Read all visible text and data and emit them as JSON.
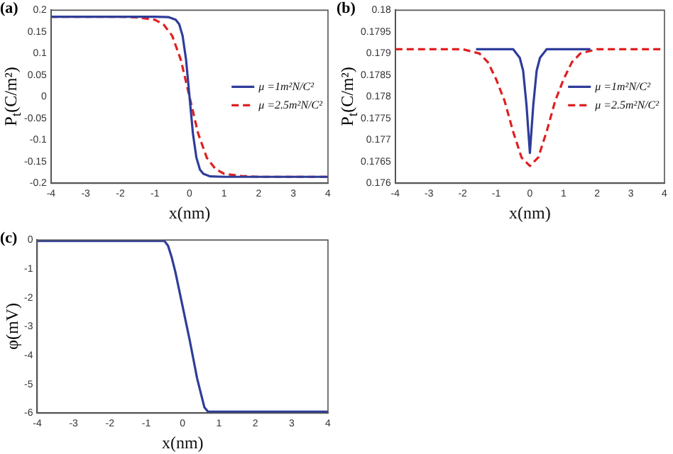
{
  "chart_data": [
    {
      "type": "line",
      "title": "(a)",
      "xlabel": "x(nm)",
      "ylabel": "P$_{t}$(C/m²)",
      "xlim": [
        -4,
        4
      ],
      "xticks": [
        -4,
        -3,
        -2,
        -1,
        0,
        1,
        2,
        3,
        4
      ],
      "ylim": [
        -0.2,
        0.2
      ],
      "yticks": [
        -0.2,
        -0.15,
        -0.1,
        -0.05,
        0,
        0.05,
        0.1,
        0.15,
        0.2
      ],
      "grid": false,
      "legend": "right",
      "series": [
        {
          "name": "μ =1m²N/C²",
          "color": "#2e3d9a",
          "line_style": "solid",
          "x": [
            -4,
            -2,
            -1,
            -0.6,
            -0.4,
            -0.3,
            -0.2,
            -0.1,
            0,
            0.1,
            0.2,
            0.3,
            0.4,
            0.6,
            1,
            2,
            4
          ],
          "values": [
            0.185,
            0.185,
            0.185,
            0.184,
            0.178,
            0.168,
            0.141,
            0.086,
            0,
            -0.086,
            -0.141,
            -0.168,
            -0.178,
            -0.184,
            -0.185,
            -0.185,
            -0.185
          ]
        },
        {
          "name": "μ =2.5m²N/C²",
          "color": "#e02020",
          "line_style": "dashed",
          "x": [
            -4,
            -2,
            -1.5,
            -1,
            -0.75,
            -0.5,
            -0.25,
            0,
            0.25,
            0.5,
            0.75,
            1,
            1.5,
            2,
            4
          ],
          "values": [
            0.185,
            0.185,
            0.183,
            0.178,
            0.167,
            0.141,
            0.085,
            0,
            -0.085,
            -0.141,
            -0.167,
            -0.178,
            -0.183,
            -0.185,
            -0.185
          ]
        }
      ]
    },
    {
      "type": "line",
      "title": "(b)",
      "xlabel": "x(nm)",
      "ylabel": "P$_{t}$(C/m²)",
      "xlim": [
        -4,
        4
      ],
      "xticks": [
        -4,
        -3,
        -2,
        -1,
        0,
        1,
        2,
        3,
        4
      ],
      "ylim": [
        0.176,
        0.18
      ],
      "yticks": [
        0.176,
        0.1765,
        0.177,
        0.1775,
        0.178,
        0.1785,
        0.179,
        0.1795,
        0.18
      ],
      "grid": false,
      "legend": "right",
      "series": [
        {
          "name": "μ =1m²N/C²",
          "color": "#2e3d9a",
          "line_style": "solid",
          "x": [
            -1.6,
            -0.5,
            -0.3,
            -0.2,
            -0.1,
            0,
            0.1,
            0.2,
            0.3,
            0.5,
            1.8
          ],
          "values": [
            0.1791,
            0.1791,
            0.1789,
            0.1786,
            0.1778,
            0.1767,
            0.1778,
            0.1786,
            0.1789,
            0.1791,
            0.1791
          ]
        },
        {
          "name": "μ =2.5m²N/C²",
          "color": "#e02020",
          "line_style": "dashed",
          "x": [
            -4,
            -2,
            -1.5,
            -1.25,
            -1,
            -0.75,
            -0.5,
            -0.25,
            0,
            0.25,
            0.5,
            0.75,
            1,
            1.25,
            1.5,
            2,
            4
          ],
          "values": [
            0.1791,
            0.1791,
            0.179,
            0.1788,
            0.1784,
            0.1779,
            0.1772,
            0.1766,
            0.1764,
            0.1766,
            0.1772,
            0.1779,
            0.1784,
            0.1788,
            0.179,
            0.1791,
            0.1791
          ]
        }
      ]
    },
    {
      "type": "line",
      "title": "(c)",
      "xlabel": "x(nm)",
      "ylabel": "φ(mV)",
      "xlim": [
        -4,
        4
      ],
      "xticks": [
        -4,
        -3,
        -2,
        -1,
        0,
        1,
        2,
        3,
        4
      ],
      "ylim": [
        -6,
        0
      ],
      "yticks": [
        -6,
        -5,
        -4,
        -3,
        -2,
        -1,
        0
      ],
      "grid": false,
      "series": [
        {
          "color": "#2e3d9a",
          "line_style": "solid",
          "x": [
            -4,
            -0.5,
            -0.4,
            -0.3,
            -0.2,
            0,
            0.2,
            0.4,
            0.6,
            0.7,
            4
          ],
          "values": [
            -0.03,
            -0.03,
            -0.2,
            -0.6,
            -1.1,
            -2.3,
            -3.5,
            -4.8,
            -5.8,
            -5.95,
            -5.95
          ]
        }
      ]
    }
  ]
}
